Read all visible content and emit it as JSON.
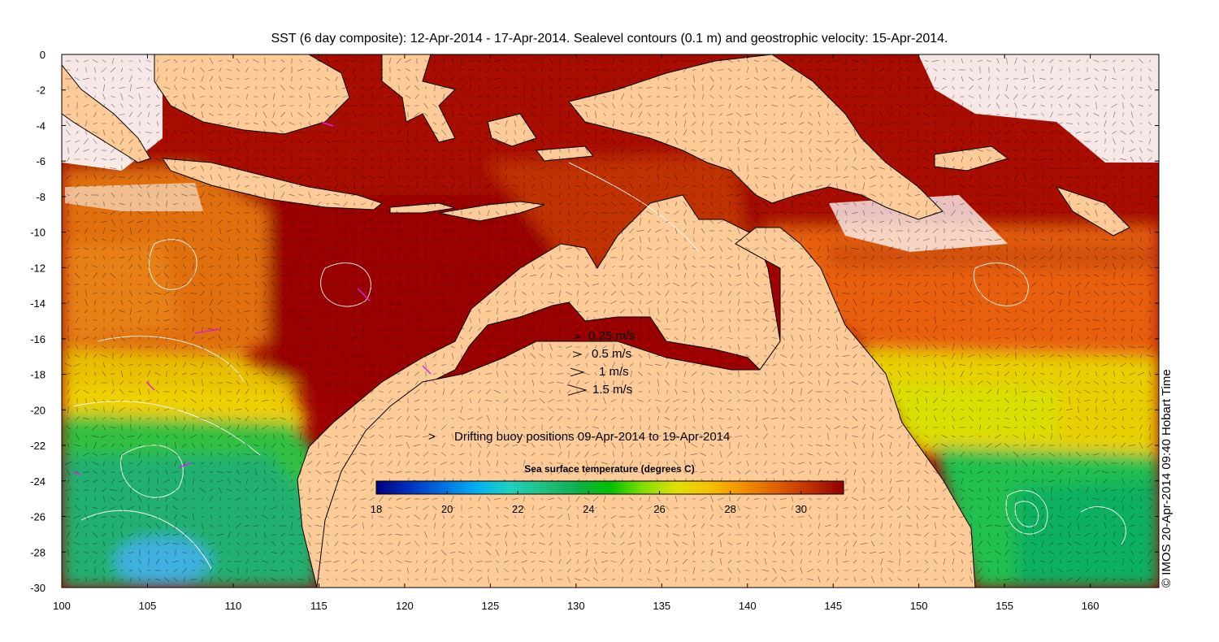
{
  "title": "SST (6 day composite): 12-Apr-2014 - 17-Apr-2014. Sealevel contours (0.1 m) and geostrophic velocity: 15-Apr-2014.",
  "credit": "© IMOS 20-Apr-2014 09:40 Hobart Time",
  "x_axis": {
    "min": 100,
    "max": 164,
    "ticks": [
      "100",
      "105",
      "110",
      "115",
      "120",
      "125",
      "130",
      "135",
      "140",
      "145",
      "150",
      "155",
      "160"
    ]
  },
  "y_axis": {
    "min": -30,
    "max": 0,
    "ticks": [
      "0",
      "-2",
      "-4",
      "-6",
      "-8",
      "-10",
      "-12",
      "-14",
      "-16",
      "-18",
      "-20",
      "-22",
      "-24",
      "-26",
      "-28",
      "-30"
    ]
  },
  "velocity_legend": [
    {
      "label": "0.25 m/s",
      "speed": 0.25
    },
    {
      "label": "0.5 m/s",
      "speed": 0.5
    },
    {
      "label": "1 m/s",
      "speed": 1
    },
    {
      "label": "1.5 m/s",
      "speed": 1.5
    }
  ],
  "buoy_legend": {
    "symbol": ">",
    "label": "Drifting buoy positions 09-Apr-2014 to 19-Apr-2014",
    "color": "#e020e0"
  },
  "colorbar": {
    "title": "Sea surface temperature (degrees C)",
    "min": 18,
    "max": 31.2,
    "ticks": [
      "18",
      "20",
      "22",
      "24",
      "26",
      "28",
      "30"
    ],
    "colors": [
      "#000080",
      "#0030c0",
      "#0070e0",
      "#00b0f0",
      "#20d0c0",
      "#20c080",
      "#10b050",
      "#00c000",
      "#80e000",
      "#e0e000",
      "#f8c000",
      "#f09000",
      "#e06000",
      "#c03000",
      "#900000"
    ]
  },
  "colors": {
    "land": "#fdcb98",
    "coast": "#000000",
    "contour": "#ffffff",
    "arrow": "#000000"
  }
}
